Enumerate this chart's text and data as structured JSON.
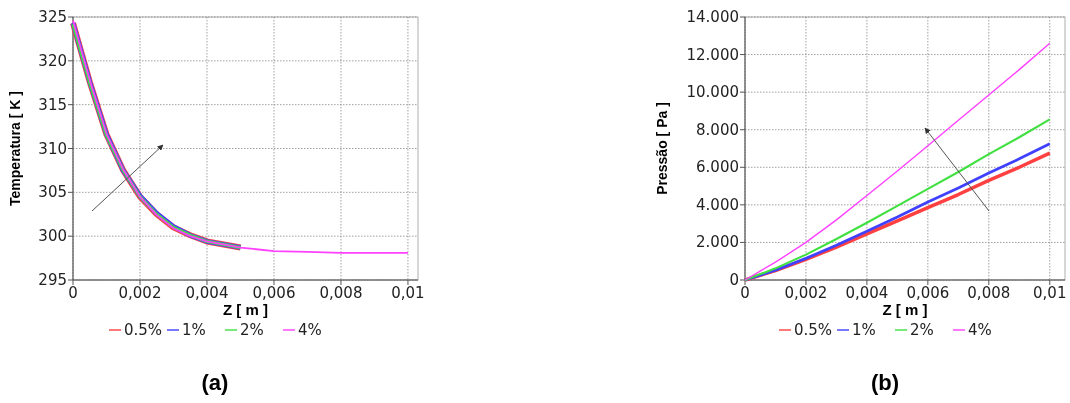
{
  "chart_data": [
    {
      "type": "line",
      "xlabel": "Z [ m ]",
      "ylabel": "Temperatura [ K ]",
      "annotations": [
        "(a)"
      ],
      "grid": true,
      "legend": "bottom",
      "line_style": "solid",
      "xlim": [
        0,
        0.0103
      ],
      "ylim": [
        295,
        325
      ],
      "xticks": [
        {
          "value": 0,
          "label": "0"
        },
        {
          "value": 0.002,
          "label": "0,002"
        },
        {
          "value": 0.004,
          "label": "0,004"
        },
        {
          "value": 0.006,
          "label": "0,006"
        },
        {
          "value": 0.008,
          "label": "0,008"
        },
        {
          "value": 0.01,
          "label": "0,01"
        }
      ],
      "yticks": [
        295,
        300,
        305,
        310,
        315,
        320,
        325
      ],
      "x": [
        0,
        0.0005,
        0.001,
        0.0015,
        0.002,
        0.0025,
        0.003,
        0.0035,
        0.004,
        0.005,
        0.006,
        0.007,
        0.008,
        0.009,
        0.01
      ],
      "series": [
        {
          "name": "0.5%",
          "color": "#ff4040",
          "values": [
            324.3,
            317.6,
            311.6,
            307.5,
            304.5,
            302.5,
            301,
            300.1,
            299.4,
            298.7,
            null,
            null,
            null,
            null,
            null
          ]
        },
        {
          "name": "1%",
          "color": "#4040ff",
          "values": [
            324.3,
            317.6,
            311.6,
            307.5,
            304.6,
            302.6,
            301.1,
            300.1,
            299.4,
            298.7,
            null,
            null,
            null,
            null,
            null
          ]
        },
        {
          "name": "2%",
          "color": "#40e040",
          "values": [
            324.2,
            317.5,
            311.5,
            307.5,
            304.5,
            302.5,
            301,
            300.1,
            299.4,
            298.7,
            null,
            null,
            null,
            null,
            null
          ]
        },
        {
          "name": "4%",
          "color": "#ff40ff",
          "values": [
            324.6,
            317.8,
            311.7,
            307.6,
            304.5,
            302.4,
            300.9,
            300,
            299.4,
            298.7,
            298.3,
            298.2,
            298.1,
            298.1,
            298.1
          ]
        }
      ]
    },
    {
      "type": "line",
      "xlabel": "Z [ m ]",
      "ylabel": "Pressão [ Pa ]",
      "annotations": [
        "(b)"
      ],
      "grid": true,
      "legend": "bottom",
      "line_style": "solid",
      "xlim": [
        0,
        0.0105
      ],
      "ylim": [
        0,
        14000
      ],
      "xticks": [
        {
          "value": 0,
          "label": "0"
        },
        {
          "value": 0.002,
          "label": "0,002"
        },
        {
          "value": 0.004,
          "label": "0,004"
        },
        {
          "value": 0.006,
          "label": "0,006"
        },
        {
          "value": 0.008,
          "label": "0,008"
        },
        {
          "value": 0.01,
          "label": "0,01"
        }
      ],
      "yticks": [
        {
          "value": 0,
          "label": "0"
        },
        {
          "value": 2000,
          "label": "2.000"
        },
        {
          "value": 4000,
          "label": "4.000"
        },
        {
          "value": 6000,
          "label": "6.000"
        },
        {
          "value": 8000,
          "label": "8.000"
        },
        {
          "value": 10000,
          "label": "10.000"
        },
        {
          "value": 12000,
          "label": "12.000"
        },
        {
          "value": 14000,
          "label": "14.000"
        }
      ],
      "x": [
        0,
        0.001,
        0.002,
        0.003,
        0.004,
        0.005,
        0.006,
        0.007,
        0.008,
        0.009,
        0.01
      ],
      "series": [
        {
          "name": "0.5%",
          "color": "#ff4040",
          "values": [
            0,
            500,
            1100,
            1750,
            2450,
            3150,
            3850,
            4550,
            5300,
            6000,
            6750
          ]
        },
        {
          "name": "1%",
          "color": "#4040ff",
          "values": [
            0,
            520,
            1150,
            1850,
            2600,
            3350,
            4150,
            4900,
            5700,
            6450,
            7250
          ]
        },
        {
          "name": "2%",
          "color": "#40e040",
          "values": [
            0,
            620,
            1350,
            2180,
            3050,
            3950,
            4850,
            5750,
            6700,
            7600,
            8550
          ]
        },
        {
          "name": "4%",
          "color": "#ff40ff",
          "values": [
            0,
            950,
            2000,
            3200,
            4500,
            5800,
            7150,
            8500,
            9850,
            11200,
            12600
          ]
        }
      ]
    }
  ]
}
